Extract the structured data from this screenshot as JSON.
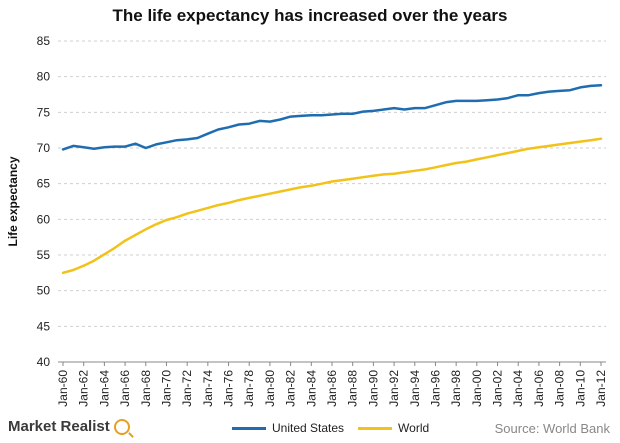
{
  "chart_data": {
    "type": "line",
    "title": "The life expectancy has increased over the years",
    "xlabel": "",
    "ylabel": "Life expectancy",
    "ylim": [
      40,
      85
    ],
    "yticks": [
      40,
      45,
      50,
      55,
      60,
      65,
      70,
      75,
      80,
      85
    ],
    "grid": true,
    "legend_position": "bottom",
    "categories": [
      "Jan-60",
      "Jan-61",
      "Jan-62",
      "Jan-63",
      "Jan-64",
      "Jan-65",
      "Jan-66",
      "Jan-67",
      "Jan-68",
      "Jan-69",
      "Jan-70",
      "Jan-71",
      "Jan-72",
      "Jan-73",
      "Jan-74",
      "Jan-75",
      "Jan-76",
      "Jan-77",
      "Jan-78",
      "Jan-79",
      "Jan-80",
      "Jan-81",
      "Jan-82",
      "Jan-83",
      "Jan-84",
      "Jan-85",
      "Jan-86",
      "Jan-87",
      "Jan-88",
      "Jan-89",
      "Jan-90",
      "Jan-91",
      "Jan-92",
      "Jan-93",
      "Jan-94",
      "Jan-95",
      "Jan-96",
      "Jan-97",
      "Jan-98",
      "Jan-99",
      "Jan-00",
      "Jan-01",
      "Jan-02",
      "Jan-03",
      "Jan-04",
      "Jan-05",
      "Jan-06",
      "Jan-07",
      "Jan-08",
      "Jan-09",
      "Jan-10",
      "Jan-11",
      "Jan-12"
    ],
    "tick_labels": [
      "Jan-60",
      "Jan-62",
      "Jan-64",
      "Jan-66",
      "Jan-68",
      "Jan-70",
      "Jan-72",
      "Jan-74",
      "Jan-76",
      "Jan-78",
      "Jan-80",
      "Jan-82",
      "Jan-84",
      "Jan-86",
      "Jan-88",
      "Jan-90",
      "Jan-92",
      "Jan-94",
      "Jan-96",
      "Jan-98",
      "Jan-00",
      "Jan-02",
      "Jan-04",
      "Jan-06",
      "Jan-08",
      "Jan-10",
      "Jan-12"
    ],
    "series": [
      {
        "name": "United States",
        "color": "#1f6db0",
        "values": [
          69.8,
          70.3,
          70.1,
          69.9,
          70.1,
          70.2,
          70.2,
          70.6,
          70.0,
          70.5,
          70.8,
          71.1,
          71.2,
          71.4,
          72.0,
          72.6,
          72.9,
          73.3,
          73.4,
          73.8,
          73.7,
          74.0,
          74.4,
          74.5,
          74.6,
          74.6,
          74.7,
          74.8,
          74.8,
          75.1,
          75.2,
          75.4,
          75.6,
          75.4,
          75.6,
          75.6,
          76.0,
          76.4,
          76.6,
          76.6,
          76.6,
          76.7,
          76.8,
          77.0,
          77.4,
          77.4,
          77.7,
          77.9,
          78.0,
          78.1,
          78.5,
          78.7,
          78.8
        ]
      },
      {
        "name": "World",
        "color": "#f2c21b",
        "values": [
          52.5,
          52.9,
          53.5,
          54.2,
          55.1,
          56.0,
          57.0,
          57.8,
          58.6,
          59.3,
          59.9,
          60.3,
          60.8,
          61.2,
          61.6,
          62.0,
          62.3,
          62.7,
          63.0,
          63.3,
          63.6,
          63.9,
          64.2,
          64.5,
          64.7,
          65.0,
          65.3,
          65.5,
          65.7,
          65.9,
          66.1,
          66.3,
          66.4,
          66.6,
          66.8,
          67.0,
          67.3,
          67.6,
          67.9,
          68.1,
          68.4,
          68.7,
          69.0,
          69.3,
          69.6,
          69.9,
          70.1,
          70.3,
          70.5,
          70.7,
          70.9,
          71.1,
          71.3
        ]
      }
    ]
  },
  "footer": {
    "brand": "Market Realist",
    "source": "Source: World Bank"
  }
}
